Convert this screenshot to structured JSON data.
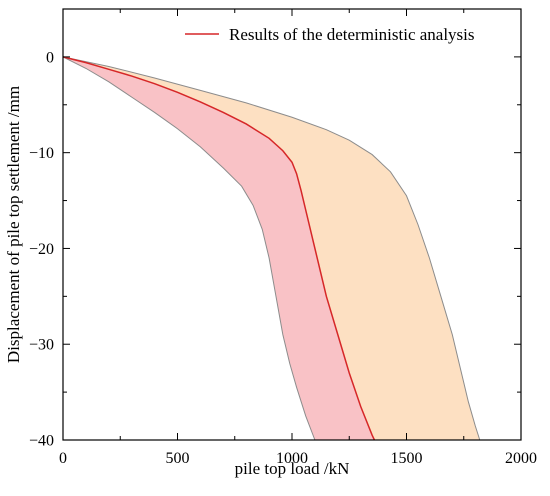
{
  "chart_data": {
    "type": "area",
    "xlabel": "pile top load /kN",
    "ylabel": "Displacement of pile top settlement /mm",
    "xlim": [
      0,
      2000
    ],
    "ylim": [
      -40,
      5
    ],
    "x_ticks": [
      0,
      500,
      1000,
      1500,
      2000
    ],
    "y_ticks": [
      0,
      -10,
      -20,
      -30,
      -40
    ],
    "x_tick_labels": [
      "0",
      "500",
      "1000",
      "1500",
      "2000"
    ],
    "y_tick_labels": [
      "0",
      "−10",
      "−20",
      "−30",
      "−40"
    ],
    "legend": {
      "position": "top-right",
      "entries": [
        "Results of the deterministic analysis"
      ]
    },
    "colors": {
      "deterministic_line": "#d62728",
      "lower_band_fill": "#f9c2c6",
      "upper_band_fill": "#fde0c2",
      "band_edge": "#8c8c8c"
    },
    "series": [
      {
        "name": "Results of the deterministic analysis",
        "role": "deterministic",
        "points": [
          [
            0,
            0
          ],
          [
            100,
            -0.6
          ],
          [
            200,
            -1.3
          ],
          [
            300,
            -2
          ],
          [
            400,
            -2.8
          ],
          [
            500,
            -3.7
          ],
          [
            600,
            -4.7
          ],
          [
            700,
            -5.8
          ],
          [
            800,
            -7
          ],
          [
            900,
            -8.5
          ],
          [
            960,
            -9.8
          ],
          [
            1000,
            -11
          ],
          [
            1020,
            -12.2
          ],
          [
            1040,
            -14
          ],
          [
            1060,
            -16
          ],
          [
            1100,
            -20
          ],
          [
            1150,
            -25
          ],
          [
            1200,
            -29
          ],
          [
            1250,
            -33
          ],
          [
            1300,
            -36.5
          ],
          [
            1350,
            -39.5
          ],
          [
            1360,
            -40
          ]
        ]
      },
      {
        "role": "lower_bound",
        "points": [
          [
            0,
            0
          ],
          [
            100,
            -1.2
          ],
          [
            200,
            -2.6
          ],
          [
            300,
            -4.2
          ],
          [
            400,
            -5.8
          ],
          [
            500,
            -7.5
          ],
          [
            600,
            -9.4
          ],
          [
            700,
            -11.6
          ],
          [
            780,
            -13.5
          ],
          [
            830,
            -15.5
          ],
          [
            870,
            -18
          ],
          [
            900,
            -21
          ],
          [
            930,
            -25
          ],
          [
            960,
            -29
          ],
          [
            990,
            -32
          ],
          [
            1020,
            -34.5
          ],
          [
            1060,
            -37.5
          ],
          [
            1100,
            -40
          ]
        ]
      },
      {
        "role": "upper_bound",
        "points": [
          [
            0,
            0
          ],
          [
            200,
            -1
          ],
          [
            400,
            -2.2
          ],
          [
            600,
            -3.5
          ],
          [
            800,
            -4.8
          ],
          [
            1000,
            -6.3
          ],
          [
            1150,
            -7.6
          ],
          [
            1250,
            -8.7
          ],
          [
            1350,
            -10.2
          ],
          [
            1430,
            -12
          ],
          [
            1500,
            -14.5
          ],
          [
            1550,
            -17.5
          ],
          [
            1600,
            -21
          ],
          [
            1650,
            -25
          ],
          [
            1700,
            -29
          ],
          [
            1740,
            -33
          ],
          [
            1770,
            -36
          ],
          [
            1800,
            -38.5
          ],
          [
            1820,
            -40
          ]
        ]
      }
    ]
  }
}
